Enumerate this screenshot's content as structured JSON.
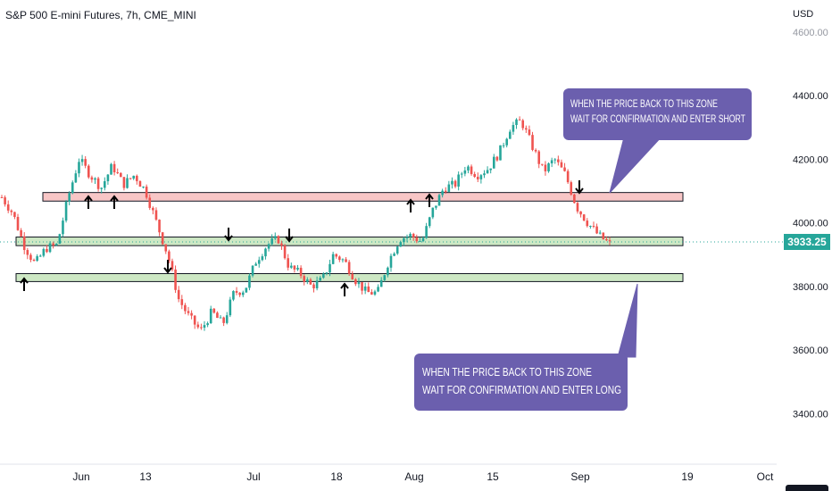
{
  "chart_data": {
    "type": "candlestick",
    "title": "S&P 500 E-mini Futures, 7h, CME_MINI",
    "currency": "USD",
    "last_price": "3933.25",
    "y_ticks": [
      "4600.00",
      "4400.00",
      "4200.00",
      "4000.00",
      "3800.00",
      "3600.00",
      "3400.00"
    ],
    "y_values": [
      4600,
      4400,
      4200,
      4000,
      3800,
      3600,
      3400
    ],
    "x_ticks": [
      "Jun",
      "13",
      "Jul",
      "18",
      "Aug",
      "15",
      "Sep",
      "19",
      "Oct"
    ],
    "up_color": "#26a69a",
    "down_color": "#ef5350",
    "price_path": [
      4080,
      4030,
      3930,
      3870,
      3920,
      3930,
      4080,
      4200,
      4150,
      4110,
      4180,
      4120,
      4150,
      4100,
      4000,
      3900,
      3760,
      3700,
      3660,
      3720,
      3680,
      3780,
      3790,
      3880,
      3930,
      3950,
      3860,
      3840,
      3800,
      3820,
      3900,
      3880,
      3820,
      3780,
      3780,
      3880,
      3950,
      3960,
      3940,
      4040,
      4110,
      4120,
      4180,
      4150,
      4170,
      4220,
      4300,
      4320,
      4240,
      4160,
      4200,
      4150,
      4050,
      4000,
      3960,
      3933
    ],
    "zones": [
      {
        "name": "resistance",
        "level_top": 4095,
        "level_bottom": 4068,
        "fill": "#f8c6c6"
      },
      {
        "name": "support",
        "level_top": 3955,
        "level_bottom": 3928,
        "fill": "#cde8c4"
      },
      {
        "name": "support-lower",
        "level_top": 3840,
        "level_bottom": 3815,
        "fill": "#cde8c4"
      }
    ],
    "annotations": [
      {
        "text_lines": [
          "WHEN THE PRICE BACK TO THIS ZONE",
          "WAIT FOR CONFIRMATION AND ENTER SHORT"
        ]
      },
      {
        "text_lines": [
          "WHEN THE PRICE BACK TO THIS ZONE",
          "WAIT FOR CONFIRMATION AND ENTER LONG"
        ]
      }
    ],
    "callout_color": "#6b5fae"
  }
}
